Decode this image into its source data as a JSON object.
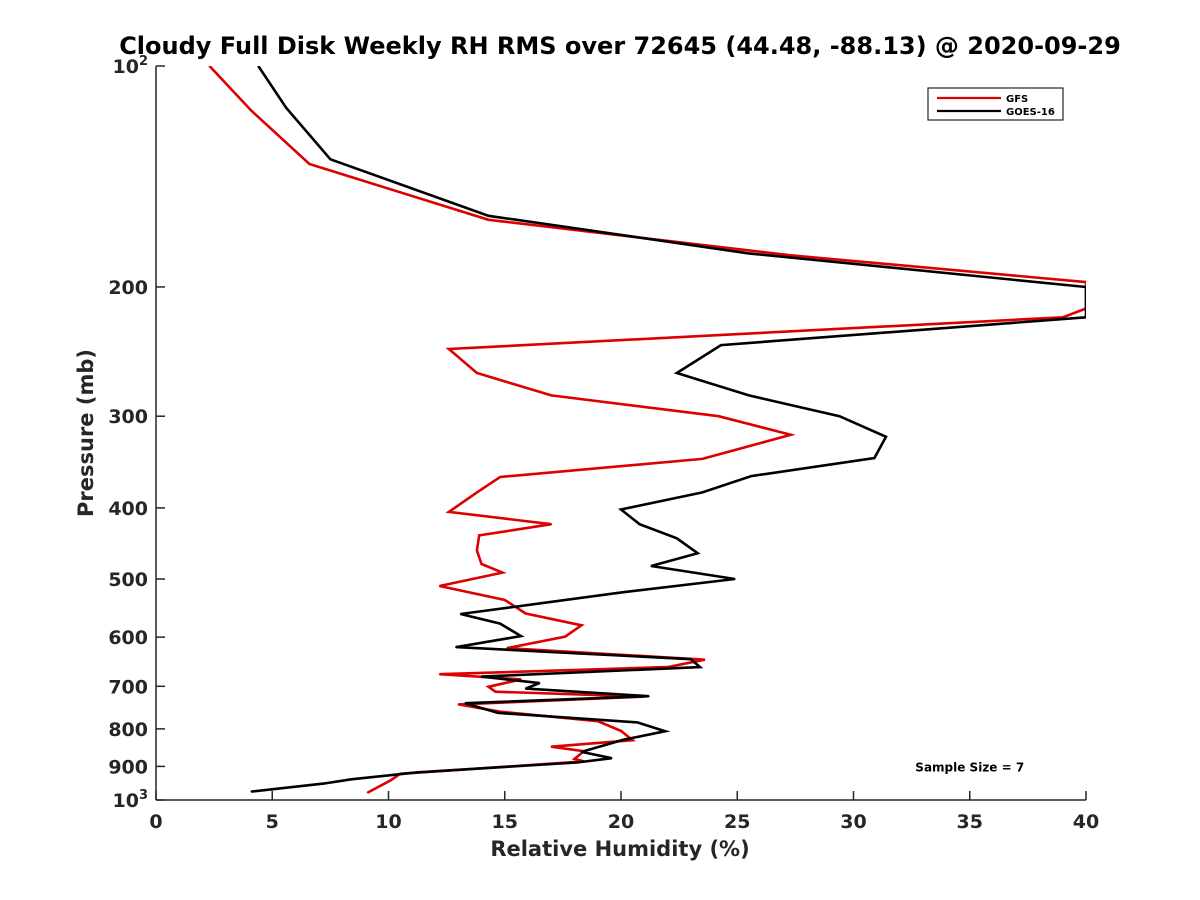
{
  "chart_data": {
    "type": "line",
    "title": "Cloudy Full Disk Weekly RH RMS over 72645 (44.48, -88.13) @ 2020-09-29",
    "xlabel": "Relative Humidity (%)",
    "ylabel": "Pressure (mb)",
    "xlim": [
      0,
      40
    ],
    "ylim": [
      100,
      1000
    ],
    "y_scale": "log",
    "y_reversed": true,
    "grid": false,
    "legend_position": "top-right",
    "x_ticks": [
      0,
      5,
      10,
      15,
      20,
      25,
      30,
      35,
      40
    ],
    "y_ticks": [
      {
        "value": 100,
        "label": "10",
        "sup": "2"
      },
      {
        "value": 200,
        "label": "200"
      },
      {
        "value": 300,
        "label": "300"
      },
      {
        "value": 400,
        "label": "400"
      },
      {
        "value": 500,
        "label": "500"
      },
      {
        "value": 600,
        "label": "600"
      },
      {
        "value": 700,
        "label": "700"
      },
      {
        "value": 800,
        "label": "800"
      },
      {
        "value": 900,
        "label": "900"
      },
      {
        "value": 1000,
        "label": "10",
        "sup": "3"
      }
    ],
    "series": [
      {
        "name": "GFS",
        "color": "#dd0000",
        "points": [
          [
            2.3,
            100
          ],
          [
            4.1,
            115
          ],
          [
            6.6,
            136
          ],
          [
            14.3,
            162
          ],
          [
            27.2,
            181
          ],
          [
            40.0,
            197
          ],
          [
            40.0,
            214
          ],
          [
            39.0,
            220
          ],
          [
            12.6,
            243
          ],
          [
            13.8,
            262
          ],
          [
            17.0,
            281
          ],
          [
            24.2,
            300
          ],
          [
            27.3,
            318
          ],
          [
            23.5,
            343
          ],
          [
            14.8,
            363
          ],
          [
            13.8,
            381
          ],
          [
            12.6,
            405
          ],
          [
            17.0,
            421
          ],
          [
            13.9,
            436
          ],
          [
            13.8,
            457
          ],
          [
            14.0,
            477
          ],
          [
            14.9,
            490
          ],
          [
            12.2,
            511
          ],
          [
            15.0,
            534
          ],
          [
            15.9,
            557
          ],
          [
            18.3,
            578
          ],
          [
            17.6,
            599
          ],
          [
            15.1,
            621
          ],
          [
            23.6,
            644
          ],
          [
            22.0,
            659
          ],
          [
            12.2,
            674
          ],
          [
            15.7,
            685
          ],
          [
            14.3,
            701
          ],
          [
            14.6,
            712
          ],
          [
            21.0,
            723
          ],
          [
            13.0,
            741
          ],
          [
            14.8,
            758
          ],
          [
            19.0,
            781
          ],
          [
            20.0,
            805
          ],
          [
            20.5,
            829
          ],
          [
            17.0,
            846
          ],
          [
            18.4,
            858
          ],
          [
            18.0,
            879
          ],
          [
            18.4,
            886
          ],
          [
            10.5,
            921
          ],
          [
            10.1,
            940
          ],
          [
            9.1,
            977
          ]
        ]
      },
      {
        "name": "GOES-16",
        "color": "#000000",
        "points": [
          [
            4.4,
            100
          ],
          [
            5.6,
            114
          ],
          [
            7.5,
            134
          ],
          [
            14.3,
            160
          ],
          [
            25.5,
            180
          ],
          [
            40.0,
            200
          ],
          [
            40.0,
            220
          ],
          [
            24.3,
            240
          ],
          [
            22.4,
            262
          ],
          [
            25.5,
            281
          ],
          [
            29.4,
            300
          ],
          [
            31.4,
            320
          ],
          [
            30.9,
            342
          ],
          [
            25.6,
            362
          ],
          [
            23.5,
            381
          ],
          [
            20.0,
            402
          ],
          [
            20.8,
            421
          ],
          [
            22.4,
            440
          ],
          [
            23.3,
            461
          ],
          [
            21.3,
            480
          ],
          [
            24.9,
            500
          ],
          [
            20.1,
            521
          ],
          [
            13.1,
            558
          ],
          [
            14.8,
            575
          ],
          [
            15.7,
            598
          ],
          [
            12.9,
            619
          ],
          [
            23.0,
            643
          ],
          [
            23.4,
            659
          ],
          [
            14.0,
            679
          ],
          [
            16.5,
            693
          ],
          [
            15.9,
            705
          ],
          [
            21.2,
            722
          ],
          [
            13.3,
            738
          ],
          [
            14.7,
            761
          ],
          [
            20.7,
            784
          ],
          [
            21.9,
            806
          ],
          [
            20.1,
            828
          ],
          [
            18.3,
            860
          ],
          [
            19.6,
            877
          ],
          [
            18.1,
            889
          ],
          [
            11.2,
            917
          ],
          [
            8.4,
            937
          ],
          [
            7.2,
            950
          ],
          [
            4.1,
            974
          ]
        ]
      }
    ],
    "annotations": [
      {
        "text": "Sample Size = 7",
        "x": 35.0,
        "y": 900
      }
    ]
  }
}
